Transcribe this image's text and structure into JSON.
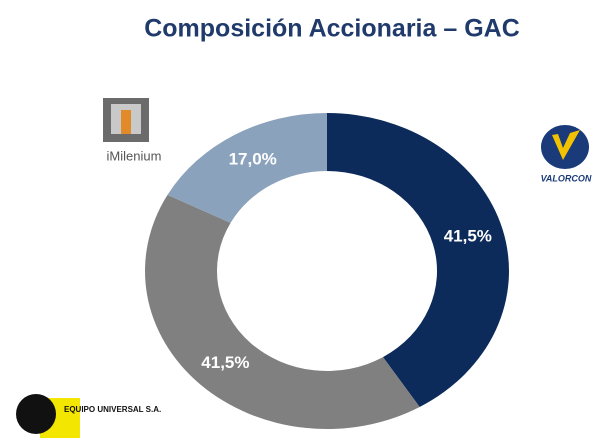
{
  "chart_data": {
    "type": "donut",
    "title": "Composición Accionaria – GAC",
    "categories": [
      "VALORCON",
      "EQUIPO UNIVERSAL S.A.",
      "iMilenium"
    ],
    "values": [
      41.5,
      41.5,
      17.0
    ],
    "value_labels": [
      "41,5%",
      "41,5%",
      "17,0%"
    ],
    "colors": [
      "#0c2b5b",
      "#808080",
      "#8ba2bc"
    ]
  }
}
